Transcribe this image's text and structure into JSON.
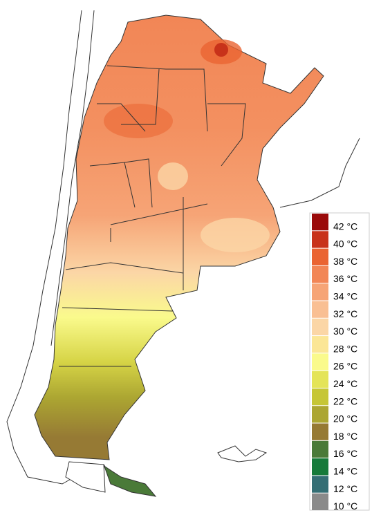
{
  "legend": {
    "items": [
      {
        "label": "42 °C",
        "color": "#9a0a0a"
      },
      {
        "label": "40 °C",
        "color": "#c8321a"
      },
      {
        "label": "38 °C",
        "color": "#ea6432"
      },
      {
        "label": "36 °C",
        "color": "#f28656"
      },
      {
        "label": "34 °C",
        "color": "#f6a476"
      },
      {
        "label": "32 °C",
        "color": "#f9bf93"
      },
      {
        "label": "30 °C",
        "color": "#fbd6a6"
      },
      {
        "label": "28 °C",
        "color": "#fbe696"
      },
      {
        "label": "26 °C",
        "color": "#fafa8c"
      },
      {
        "label": "24 °C",
        "color": "#e4e458"
      },
      {
        "label": "22 °C",
        "color": "#c6c636"
      },
      {
        "label": "20 °C",
        "color": "#aca632"
      },
      {
        "label": "18 °C",
        "color": "#967a34"
      },
      {
        "label": "16 °C",
        "color": "#4a7a38"
      },
      {
        "label": "14 °C",
        "color": "#167a3a"
      },
      {
        "label": "12 °C",
        "color": "#346e74"
      },
      {
        "label": "10 °C",
        "color": "#8a8a8a"
      }
    ]
  }
}
